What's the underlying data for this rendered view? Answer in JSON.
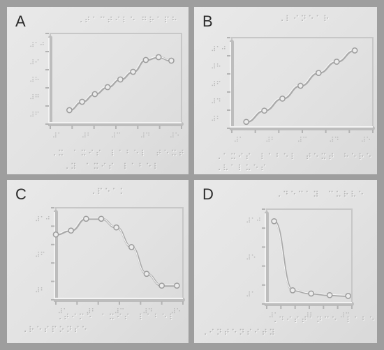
{
  "panels": [
    {
      "label": "A",
      "title_braille": "⠠⠞⠁⠉⠞⠊⠇⠑ ⠛⠗⠁⠏⠓",
      "ylabel_braille": [
        "⠼⠁⠚",
        "⠼⠊",
        "⠼⠓",
        "⠼⠛",
        "⠼⠋"
      ],
      "xlabel_braille": [
        "⠼⠁",
        "⠼⠃",
        "⠼⠉",
        "⠼⠙",
        "⠼⠑"
      ],
      "caption_braille": [
        "⠠⠭⠀⠁⠭⠊⠎⠀⠇⠁⠃⠑⠇⠀⠞⠑⠭⠞⠀⠓⠑⠗⠑",
        "⠠⠽⠀⠁⠭⠊⠎⠀⠇⠁⠃⠑⠇"
      ],
      "series": {
        "x": [
          0,
          1,
          2,
          3,
          4,
          5,
          6,
          7,
          8
        ],
        "y": [
          1.0,
          2.2,
          3.3,
          4.3,
          5.4,
          6.5,
          8.2,
          8.6,
          8.1
        ],
        "xlim": [
          -1.5,
          8.8
        ],
        "ylim": [
          -1,
          12
        ]
      },
      "color": "#a9a9a9"
    },
    {
      "label": "B",
      "title_braille": "⠠⠇⠊⠝⠑⠁⠗",
      "ylabel_braille": [
        "⠼⠁⠚",
        "⠼⠓",
        "⠼⠋",
        "⠼⠙",
        "⠼⠃"
      ],
      "xlabel_braille": [
        "⠼⠁",
        "⠼⠃",
        "⠼⠉",
        "⠼⠙",
        "⠼⠑"
      ],
      "caption_braille": [
        "⠠⠁⠭⠊⠎⠀⠇⠁⠃⠑⠇⠀⠞⠑⠭⠞⠀⠓⠑⠗⠑",
        "⠠⠧⠁⠇⠥⠑⠎"
      ],
      "series": {
        "x": [
          0,
          1,
          2,
          3,
          4,
          5,
          6
        ],
        "y": [
          0.5,
          1.9,
          3.4,
          5.0,
          6.6,
          8.0,
          9.4
        ],
        "xlim": [
          -0.8,
          7.0
        ],
        "ylim": [
          -0.3,
          11
        ]
      },
      "color": "#a9a9a9"
    },
    {
      "label": "C",
      "title_braille": "⠠⠏⠑⠁⠅",
      "ylabel_braille": [
        "⠼⠁⠚",
        "⠼⠋",
        "⠼⠃"
      ],
      "xlabel_braille": [
        "⠼⠁",
        "⠼⠃",
        "⠼⠉",
        "⠼⠙",
        "⠼⠑"
      ],
      "caption_braille": [
        "⠠⠞⠊⠍⠑⠀⠁⠭⠊⠎⠀⠇⠁⠃⠑⠇",
        "⠠⠗⠑⠎⠏⠕⠝⠎⠑"
      ],
      "series": {
        "x": [
          0,
          1,
          2,
          3,
          4,
          5,
          6,
          7,
          8
        ],
        "y": [
          6.8,
          7.3,
          8.8,
          8.8,
          7.7,
          5.2,
          1.8,
          0.3,
          0.3
        ],
        "xlim": [
          0,
          8.4
        ],
        "ylim": [
          -1.5,
          10.2
        ]
      },
      "color": "#a9a9a9"
    },
    {
      "label": "D",
      "title_braille": "⠠⠙⠑⠉⠁⠽⠀⠉⠥⠗⠧⠑",
      "ylabel_braille": [
        "⠼⠁⠚",
        "⠼⠑",
        "⠼⠁"
      ],
      "xlabel_braille": [
        "⠼⠁",
        "⠼⠃",
        "⠼⠉"
      ],
      "caption_braille": [
        "⠠⠙⠊⠎⠞⠁⠝⠉⠑⠀⠇⠁⠃⠑⠇",
        "⠠⠊⠝⠞⠑⠝⠎⠊⠞⠽"
      ],
      "series": {
        "x": [
          0,
          1,
          2,
          3,
          4
        ],
        "y": [
          9.5,
          0.9,
          0.5,
          0.3,
          0.2
        ],
        "xlim": [
          -0.4,
          4.2
        ],
        "ylim": [
          -0.8,
          11
        ]
      },
      "color": "#a9a9a9"
    }
  ]
}
